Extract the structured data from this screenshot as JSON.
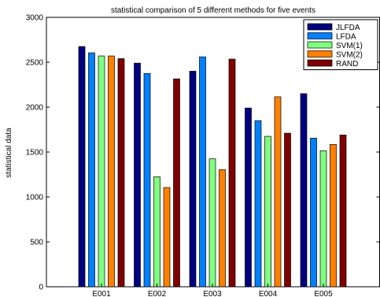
{
  "chart_data": {
    "type": "bar",
    "title": "statistical comparison of 5 different methods for five events",
    "xlabel": "",
    "ylabel": "statistical data",
    "categories": [
      "E001",
      "E002",
      "E003",
      "E004",
      "E005"
    ],
    "ylim": [
      0,
      3000
    ],
    "yticks": [
      0,
      500,
      1000,
      1500,
      2000,
      2500,
      3000
    ],
    "grid": false,
    "legend_position": "top-right",
    "series": [
      {
        "name": "JLFDA",
        "color": "#000080",
        "values": [
          2675,
          2490,
          2400,
          1990,
          2150
        ]
      },
      {
        "name": "LFDA",
        "color": "#0080FF",
        "values": [
          2605,
          2375,
          2560,
          1850,
          1655
        ]
      },
      {
        "name": "SVM(1)",
        "color": "#80FF80",
        "values": [
          2570,
          1225,
          1425,
          1675,
          1515
        ]
      },
      {
        "name": "SVM(2)",
        "color": "#FF8000",
        "values": [
          2570,
          1105,
          1305,
          2115,
          1585
        ]
      },
      {
        "name": "RAND",
        "color": "#800000",
        "values": [
          2540,
          2315,
          2535,
          1710,
          1690
        ]
      }
    ]
  }
}
